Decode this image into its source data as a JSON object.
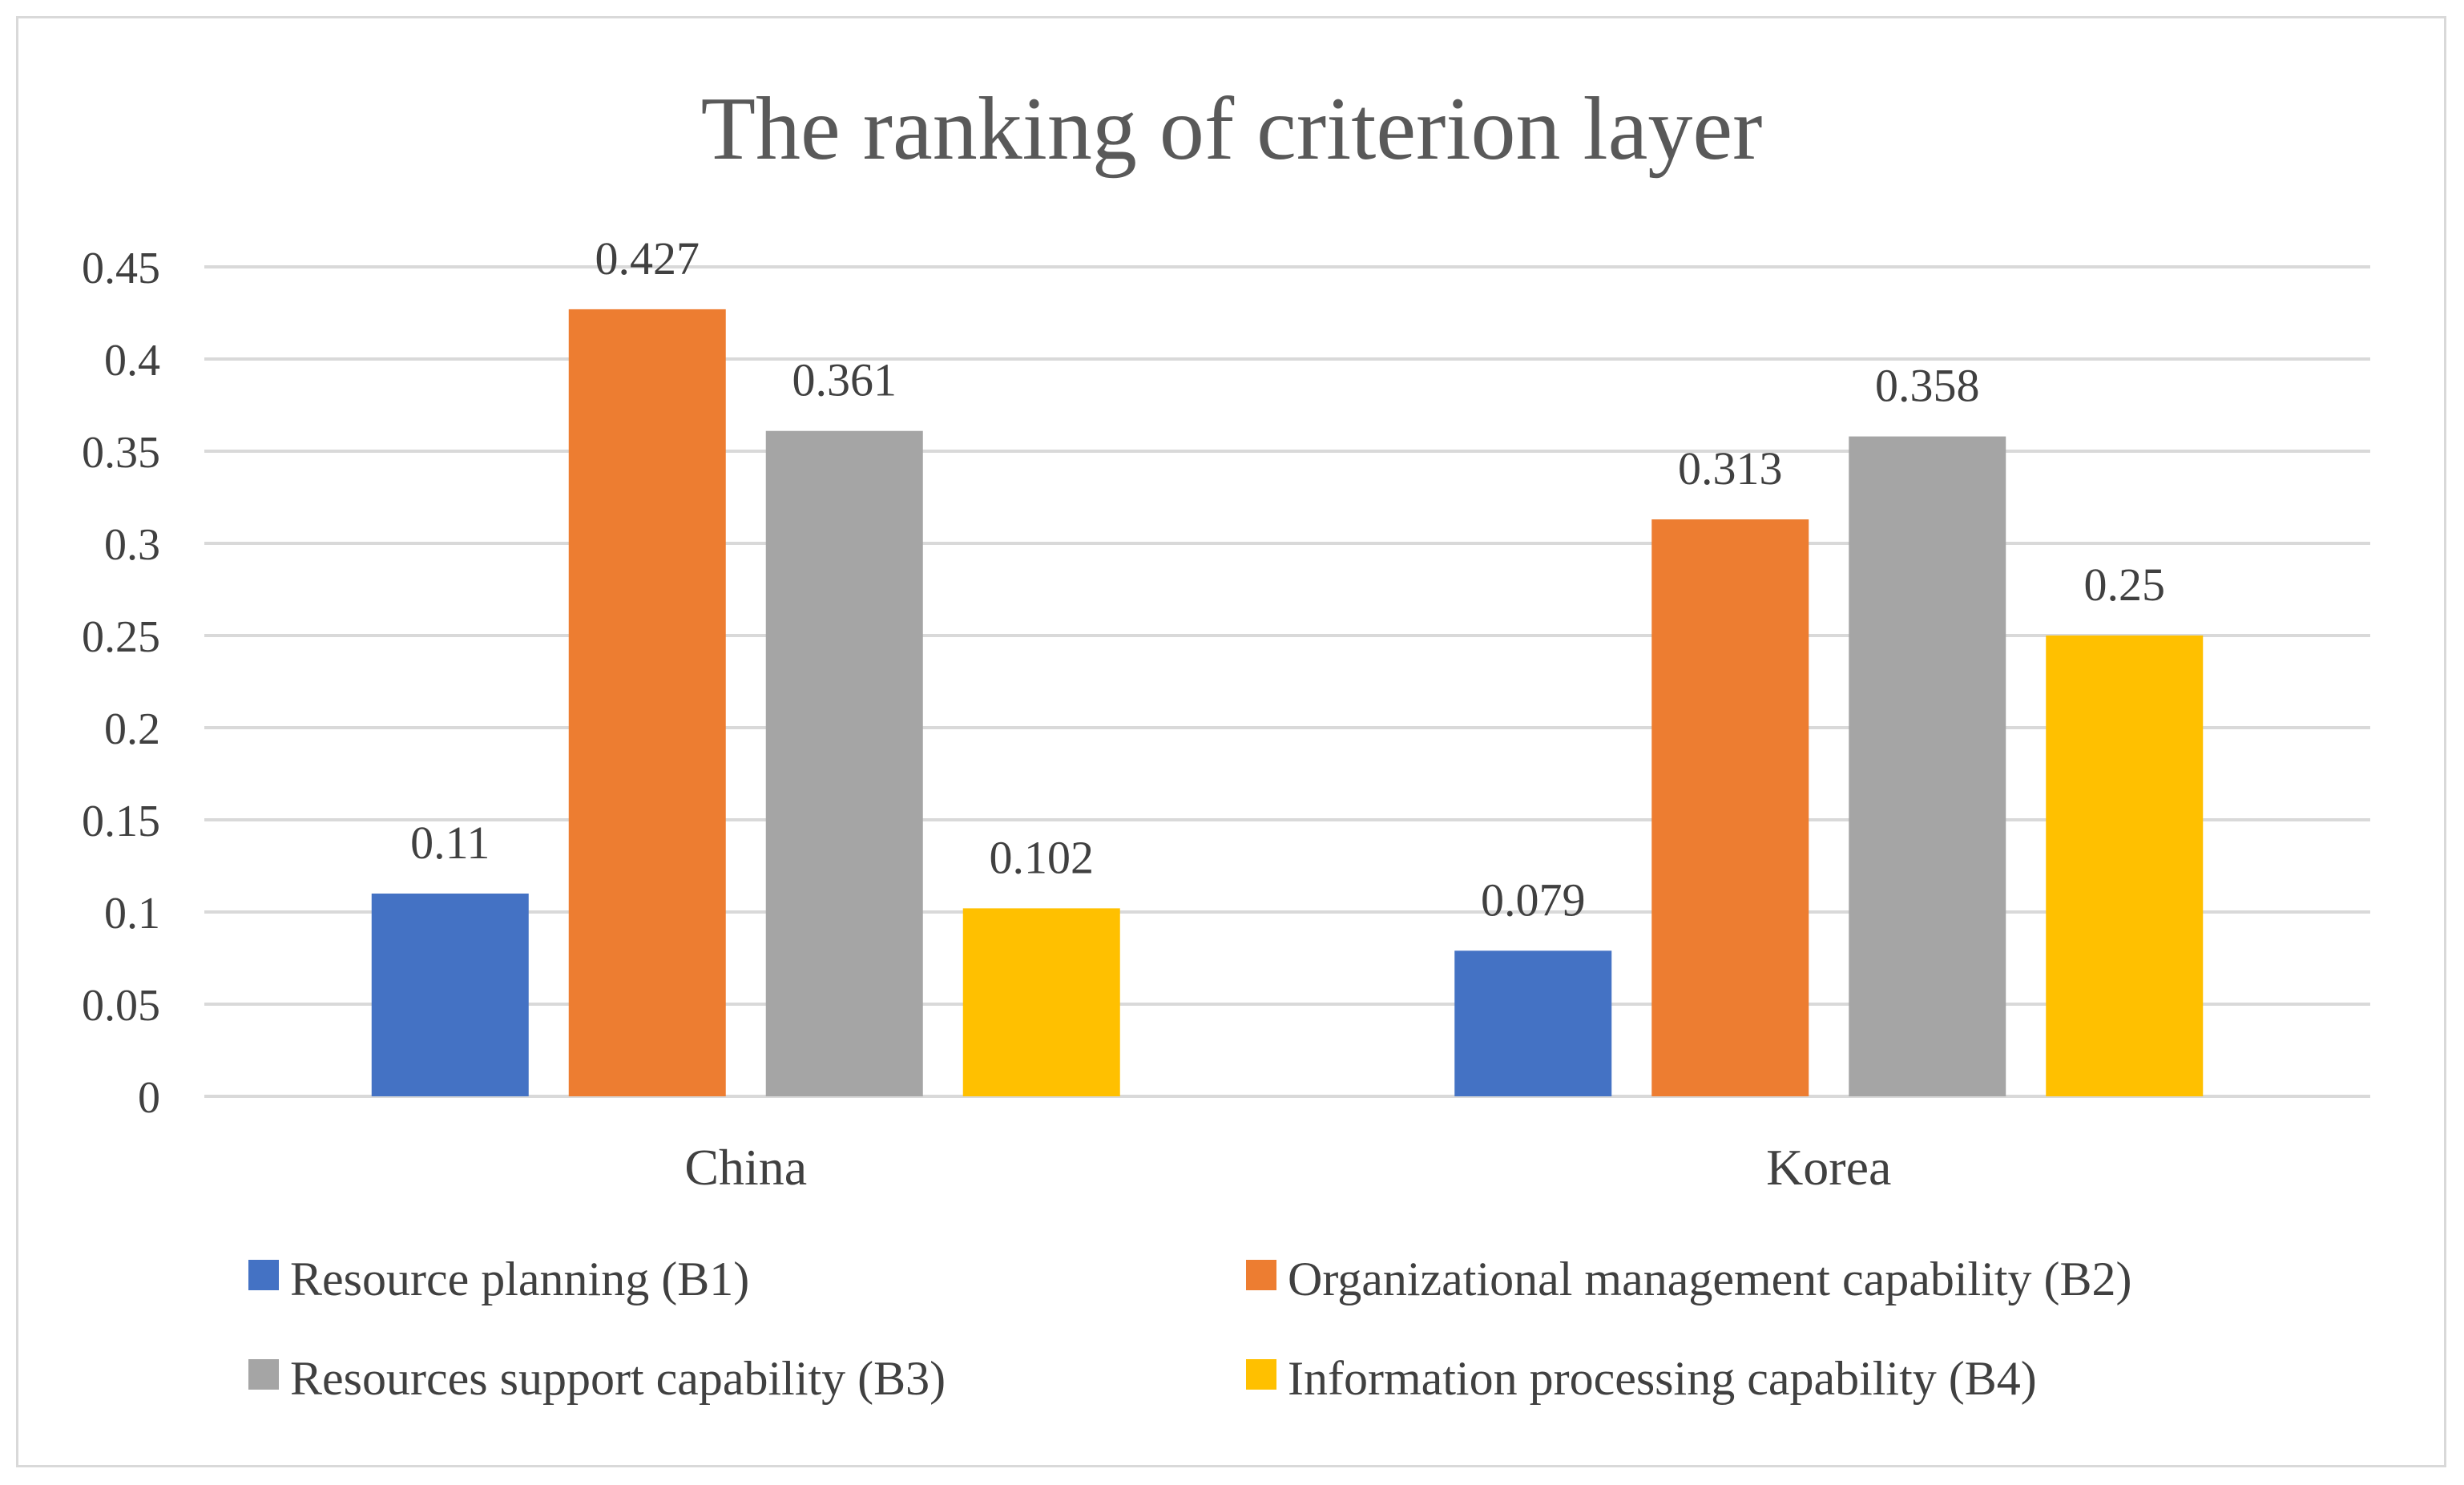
{
  "chart_data": {
    "type": "bar",
    "title": "The ranking of criterion layer",
    "xlabel": "",
    "ylabel": "",
    "categories": [
      "China",
      "Korea"
    ],
    "series": [
      {
        "name": "Resource planning (B1)",
        "values": [
          0.11,
          0.079
        ],
        "labels": [
          "0.11",
          "0.079"
        ],
        "color": "#4472c4"
      },
      {
        "name": "Organizational management capability (B2)",
        "values": [
          0.427,
          0.313
        ],
        "labels": [
          "0.427",
          "0.313"
        ],
        "color": "#ed7d31"
      },
      {
        "name": "Resources support capability (B3)",
        "values": [
          0.361,
          0.358
        ],
        "labels": [
          "0.361",
          "0.358"
        ],
        "color": "#a5a5a5"
      },
      {
        "name": "Information processing capability (B4)",
        "values": [
          0.102,
          0.25
        ],
        "labels": [
          "0.102",
          "0.25"
        ],
        "color": "#ffc000"
      }
    ],
    "ylim": [
      0,
      0.45
    ],
    "yticks": [
      "0",
      "0.05",
      "0.1",
      "0.15",
      "0.2",
      "0.25",
      "0.3",
      "0.35",
      "0.4",
      "0.45"
    ],
    "grid": true,
    "legend_position": "bottom"
  },
  "colors": {
    "gridline": "#d9d9d9",
    "text": "#404040",
    "title": "#595959"
  }
}
